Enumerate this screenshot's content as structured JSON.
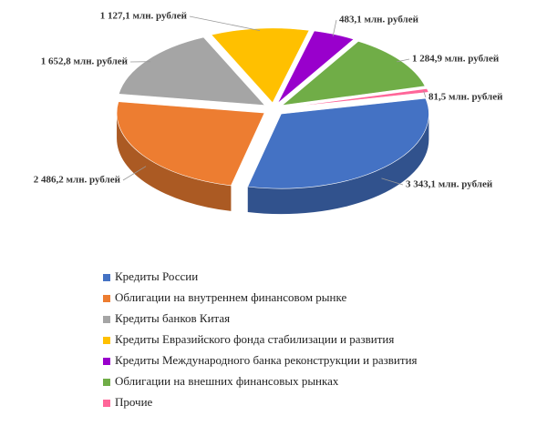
{
  "chart_data": {
    "type": "pie3d",
    "categories": [
      "Кредиты России",
      "Облигации на внутреннем финансовом рынке",
      "Кредиты банков Китая",
      "Кредиты Евразийского фонда стабилизации и развития",
      "Кредиты Международного банка реконструкции и развития",
      "Облигации на внешних финансовых рынках",
      "Прочие"
    ],
    "values": [
      3343.1,
      2486.2,
      1652.8,
      1127.1,
      483.1,
      1284.9,
      81.5
    ],
    "value_labels": [
      "3 343,1 млн. рублей",
      "2 486,2 млн. рублей",
      "1 652,8 млн. рублей",
      "1 127,1 млн. рублей",
      "483,1 млн. рублей",
      "1 284,9 млн. рублей",
      "81,5 млн. рублей"
    ],
    "colors": [
      "#4472c4",
      "#ed7d31",
      "#a5a5a5",
      "#ffc000",
      "#9900cc",
      "#70ad47",
      "#ff6699"
    ],
    "legend": "bottom"
  }
}
